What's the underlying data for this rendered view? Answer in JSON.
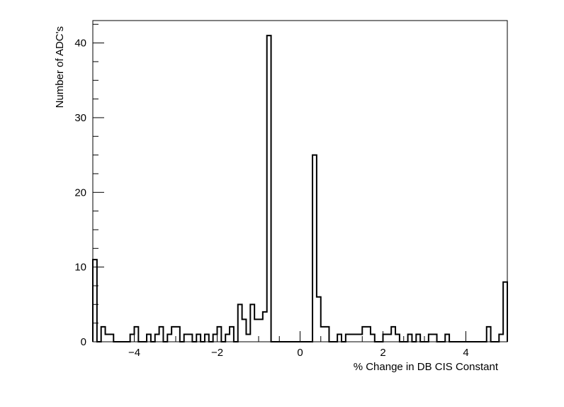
{
  "chart_data": {
    "type": "histogram",
    "title": "",
    "xlabel": "% Change in DB CIS Constant",
    "ylabel": "Number of ADC's",
    "xlim": [
      -5,
      5
    ],
    "ylim": [
      0,
      43
    ],
    "bins": 100,
    "bin_width": 0.1,
    "xticks": [
      -4,
      -2,
      0,
      2,
      4
    ],
    "xtick_labels": [
      "−4",
      "−2",
      "0",
      "2",
      "4"
    ],
    "yticks": [
      0,
      10,
      20,
      30,
      40
    ],
    "ytick_labels": [
      "0",
      "10",
      "20",
      "30",
      "40"
    ],
    "grid": false,
    "values": [
      11,
      0,
      2,
      1,
      1,
      0,
      0,
      0,
      0,
      1,
      2,
      0,
      0,
      1,
      0,
      1,
      2,
      0,
      1,
      2,
      2,
      0,
      1,
      1,
      0,
      1,
      0,
      1,
      0,
      1,
      2,
      0,
      1,
      2,
      0,
      5,
      3,
      1,
      5,
      3,
      3,
      4,
      41,
      0,
      0,
      0,
      0,
      0,
      0,
      0,
      0,
      0,
      0,
      25,
      6,
      2,
      2,
      0,
      0,
      1,
      0,
      1,
      1,
      1,
      1,
      2,
      2,
      1,
      0,
      0,
      1,
      1,
      2,
      1,
      0,
      0,
      1,
      0,
      1,
      0,
      0,
      1,
      1,
      0,
      0,
      1,
      0,
      0,
      0,
      0,
      0,
      0,
      0,
      0,
      0,
      2,
      0,
      0,
      1,
      8
    ]
  }
}
